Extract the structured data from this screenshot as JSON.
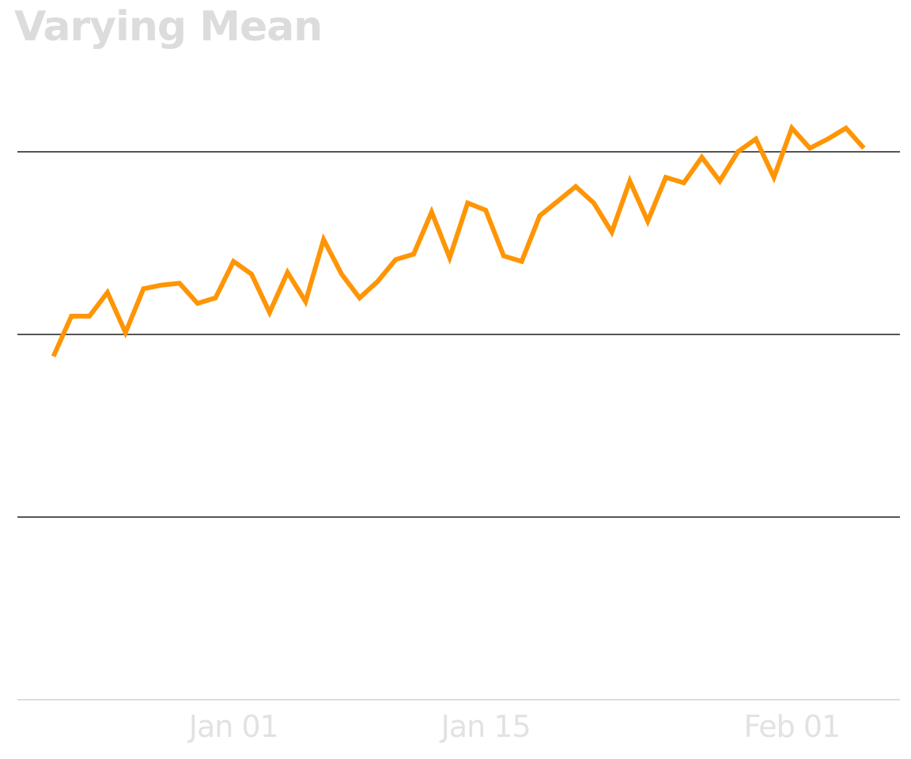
{
  "chart_data": {
    "type": "line",
    "title": "Varying Mean",
    "xlabel": "",
    "ylabel": "",
    "x_tick_labels": [
      "Jan 01",
      "Jan 15",
      "Feb 01"
    ],
    "x_tick_dates": [
      "2024-01-01",
      "2024-01-15",
      "2024-02-01"
    ],
    "xlim": [
      "2023-12-20",
      "2024-02-07"
    ],
    "ylim": [
      0,
      3
    ],
    "y_gridlines": [
      1,
      2,
      3
    ],
    "grid": true,
    "series": [
      {
        "color": "#ff9505",
        "x": [
          "2023-12-22",
          "2023-12-23",
          "2023-12-24",
          "2023-12-25",
          "2023-12-26",
          "2023-12-27",
          "2023-12-28",
          "2023-12-29",
          "2023-12-30",
          "2023-12-31",
          "2024-01-01",
          "2024-01-02",
          "2024-01-03",
          "2024-01-04",
          "2024-01-05",
          "2024-01-06",
          "2024-01-07",
          "2024-01-08",
          "2024-01-09",
          "2024-01-10",
          "2024-01-11",
          "2024-01-12",
          "2024-01-13",
          "2024-01-14",
          "2024-01-15",
          "2024-01-16",
          "2024-01-17",
          "2024-01-18",
          "2024-01-19",
          "2024-01-20",
          "2024-01-21",
          "2024-01-22",
          "2024-01-23",
          "2024-01-24",
          "2024-01-25",
          "2024-01-26",
          "2024-01-27",
          "2024-01-28",
          "2024-01-29",
          "2024-01-30",
          "2024-01-31",
          "2024-02-01",
          "2024-02-02",
          "2024-02-03",
          "2024-02-04",
          "2024-02-05"
        ],
        "y": [
          1.88,
          2.1,
          2.1,
          2.23,
          2.01,
          2.25,
          2.27,
          2.28,
          2.17,
          2.2,
          2.4,
          2.33,
          2.12,
          2.34,
          2.18,
          2.52,
          2.33,
          2.2,
          2.29,
          2.41,
          2.44,
          2.67,
          2.42,
          2.72,
          2.68,
          2.43,
          2.4,
          2.65,
          2.73,
          2.81,
          2.72,
          2.56,
          2.84,
          2.62,
          2.86,
          2.83,
          2.97,
          2.84,
          3.0,
          3.07,
          2.86,
          3.13,
          3.02,
          3.07,
          3.13,
          3.02
        ]
      }
    ]
  }
}
